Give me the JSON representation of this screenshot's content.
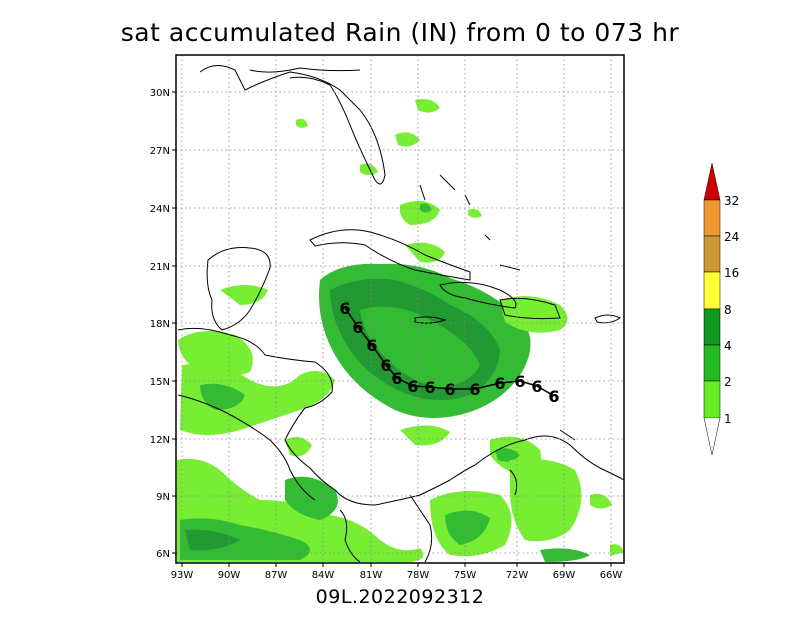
{
  "title": "sat accumulated Rain (IN) from 0 to 073 hr",
  "footer": "09L.2022092312",
  "map": {
    "lat_ticks": [
      "30N",
      "27N",
      "24N",
      "21N",
      "18N",
      "15N",
      "12N",
      "9N",
      "6N"
    ],
    "lon_ticks": [
      "93W",
      "90W",
      "87W",
      "84W",
      "81W",
      "78W",
      "75W",
      "72W",
      "69W",
      "66W"
    ],
    "storm_symbol": "6",
    "storm_track_count": 14
  },
  "legend": {
    "labels": [
      "32",
      "24",
      "16",
      "8",
      "4",
      "2",
      "1"
    ],
    "colors": {
      "lt1": "#66ee22",
      "lt2": "#22bb22",
      "lt4": "#119922",
      "lt8": "#ffff33",
      "lt16": "#cc9933",
      "lt24": "#ee9933",
      "gt32": "#cc0000"
    }
  },
  "colors": {
    "rain_light": "#77ee33",
    "rain_medium": "#33bb33",
    "rain_heavy": "#229933"
  }
}
